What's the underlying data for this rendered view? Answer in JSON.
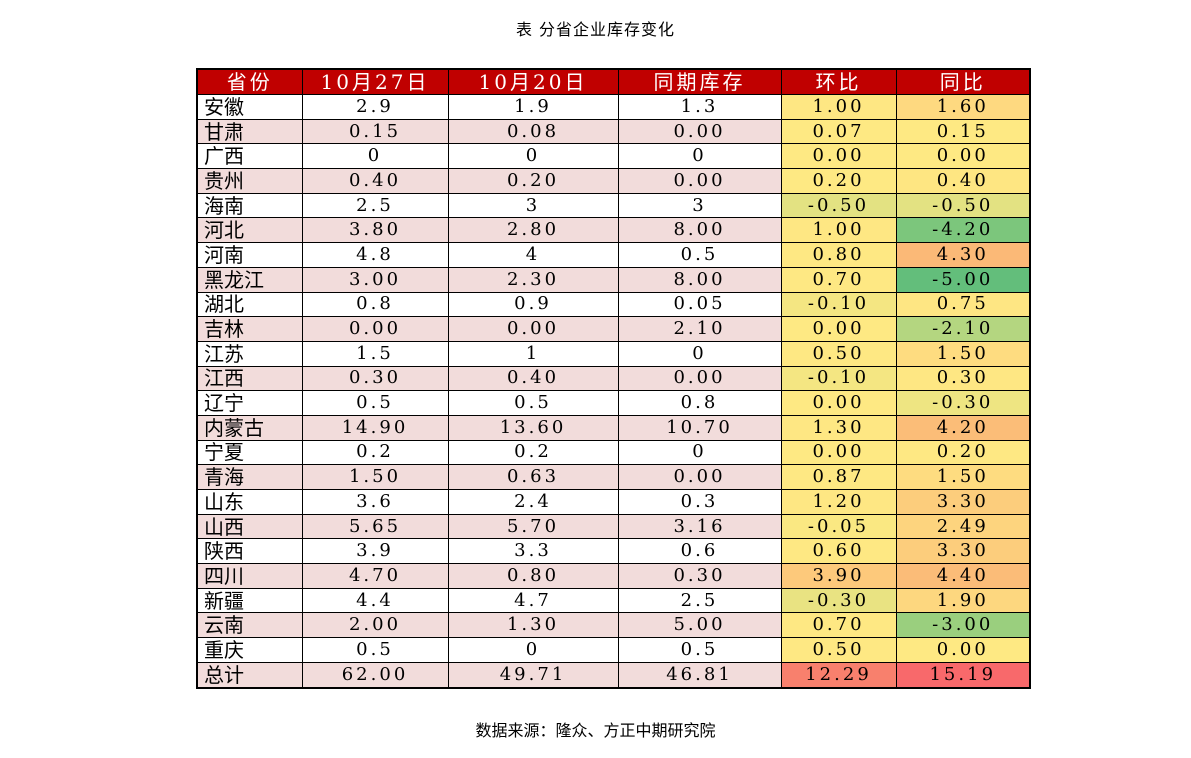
{
  "title": "表  分省企业库存变化",
  "source": "数据来源：隆众、方正中期研究院",
  "headers": [
    "省份",
    "10月27日",
    "10月20日",
    "同期库存",
    "环比",
    "同比"
  ],
  "rows": [
    {
      "province": "安徽",
      "oct27": "2.9",
      "oct20": "1.9",
      "ly": "1.3",
      "mom": "1.00",
      "yoy": "1.60",
      "mom_color": "#fee783",
      "yoy_color": "#fed980"
    },
    {
      "province": "甘肃",
      "oct27": "0.15",
      "oct20": "0.08",
      "ly": "0.00",
      "mom": "0.07",
      "yoy": "0.15",
      "mom_color": "#fee983",
      "yoy_color": "#fee983"
    },
    {
      "province": "广西",
      "oct27": "0",
      "oct20": "0",
      "ly": "0",
      "mom": "0.00",
      "yoy": "0.00",
      "mom_color": "#fee983",
      "yoy_color": "#fee983"
    },
    {
      "province": "贵州",
      "oct27": "0.40",
      "oct20": "0.20",
      "ly": "0.00",
      "mom": "0.20",
      "yoy": "0.40",
      "mom_color": "#fee983",
      "yoy_color": "#fee682"
    },
    {
      "province": "海南",
      "oct27": "2.5",
      "oct20": "3",
      "ly": "3",
      "mom": "-0.50",
      "yoy": "-0.50",
      "mom_color": "#e3e282",
      "yoy_color": "#e3e282"
    },
    {
      "province": "河北",
      "oct27": "3.80",
      "oct20": "2.80",
      "ly": "8.00",
      "mom": "1.00",
      "yoy": "-4.20",
      "mom_color": "#fee783",
      "yoy_color": "#7cc67c"
    },
    {
      "province": "河南",
      "oct27": "4.8",
      "oct20": "4",
      "ly": "0.5",
      "mom": "0.80",
      "yoy": "4.30",
      "mom_color": "#fee883",
      "yoy_color": "#fbb977"
    },
    {
      "province": "黑龙江",
      "oct27": "3.00",
      "oct20": "2.30",
      "ly": "8.00",
      "mom": "0.70",
      "yoy": "-5.00",
      "mom_color": "#fee883",
      "yoy_color": "#63be7b"
    },
    {
      "province": "湖北",
      "oct27": "0.8",
      "oct20": "0.9",
      "ly": "0.05",
      "mom": "-0.10",
      "yoy": "0.75",
      "mom_color": "#f4e682",
      "yoy_color": "#fee683"
    },
    {
      "province": "吉林",
      "oct27": "0.00",
      "oct20": "0.00",
      "ly": "2.10",
      "mom": "0.00",
      "yoy": "-2.10",
      "mom_color": "#fee983",
      "yoy_color": "#b4d680"
    },
    {
      "province": "江苏",
      "oct27": "1.5",
      "oct20": "1",
      "ly": "0",
      "mom": "0.50",
      "yoy": "1.50",
      "mom_color": "#fee883",
      "yoy_color": "#fedc80"
    },
    {
      "province": "江西",
      "oct27": "0.30",
      "oct20": "0.40",
      "ly": "0.00",
      "mom": "-0.10",
      "yoy": "0.30",
      "mom_color": "#f4e682",
      "yoy_color": "#fee783"
    },
    {
      "province": "辽宁",
      "oct27": "0.5",
      "oct20": "0.5",
      "ly": "0.8",
      "mom": "0.00",
      "yoy": "-0.30",
      "mom_color": "#fee983",
      "yoy_color": "#eee582"
    },
    {
      "province": "内蒙古",
      "oct27": "14.90",
      "oct20": "13.60",
      "ly": "10.70",
      "mom": "1.30",
      "yoy": "4.20",
      "mom_color": "#fee783",
      "yoy_color": "#fbbd78"
    },
    {
      "province": "宁夏",
      "oct27": "0.2",
      "oct20": "0.2",
      "ly": "0",
      "mom": "0.00",
      "yoy": "0.20",
      "mom_color": "#fee983",
      "yoy_color": "#fee883"
    },
    {
      "province": "青海",
      "oct27": "1.50",
      "oct20": "0.63",
      "ly": "0.00",
      "mom": "0.87",
      "yoy": "1.50",
      "mom_color": "#fee883",
      "yoy_color": "#fedc80"
    },
    {
      "province": "山东",
      "oct27": "3.6",
      "oct20": "2.4",
      "ly": "0.3",
      "mom": "1.20",
      "yoy": "3.30",
      "mom_color": "#fee783",
      "yoy_color": "#fccd7c"
    },
    {
      "province": "山西",
      "oct27": "5.65",
      "oct20": "5.70",
      "ly": "3.16",
      "mom": "-0.05",
      "yoy": "2.49",
      "mom_color": "#fae882",
      "yoy_color": "#fdd47e"
    },
    {
      "province": "陕西",
      "oct27": "3.9",
      "oct20": "3.3",
      "ly": "0.6",
      "mom": "0.60",
      "yoy": "3.30",
      "mom_color": "#fee883",
      "yoy_color": "#fccd7c"
    },
    {
      "province": "四川",
      "oct27": "4.70",
      "oct20": "0.80",
      "ly": "0.30",
      "mom": "3.90",
      "yoy": "4.40",
      "mom_color": "#fdc97b",
      "yoy_color": "#fbbc78"
    },
    {
      "province": "新疆",
      "oct27": "4.4",
      "oct20": "4.7",
      "ly": "2.5",
      "mom": "-0.30",
      "yoy": "1.90",
      "mom_color": "#e9e382",
      "yoy_color": "#fdd77f"
    },
    {
      "province": "云南",
      "oct27": "2.00",
      "oct20": "1.30",
      "ly": "5.00",
      "mom": "0.70",
      "yoy": "-3.00",
      "mom_color": "#fee883",
      "yoy_color": "#9acf7e"
    },
    {
      "province": "重庆",
      "oct27": "0.5",
      "oct20": "0",
      "ly": "0.5",
      "mom": "0.50",
      "yoy": "0.00",
      "mom_color": "#fee883",
      "yoy_color": "#fee983"
    },
    {
      "province": "总计",
      "oct27": "62.00",
      "oct20": "49.71",
      "ly": "46.81",
      "mom": "12.29",
      "yoy": "15.19",
      "mom_color": "#f8806d",
      "yoy_color": "#f8696b"
    }
  ]
}
